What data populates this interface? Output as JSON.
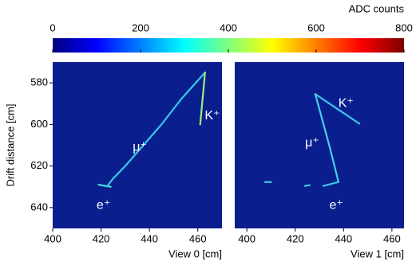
{
  "colorbar": {
    "title": "ADC counts",
    "lim": [
      0,
      800
    ],
    "ticks": [
      0,
      200,
      400,
      600,
      800
    ],
    "colors": [
      "#00007f",
      "#0000ff",
      "#007fff",
      "#00ffff",
      "#7fff7f",
      "#ffff00",
      "#ff7f00",
      "#ff0000",
      "#7f0000"
    ]
  },
  "chart_data": [
    {
      "type": "track",
      "background": "#0a1e8e",
      "xlabel": "View 0  [cm]",
      "ylabel": "Drift distance  [cm]",
      "xlim": [
        400,
        470
      ],
      "ylim": [
        650,
        570
      ],
      "xticks": [
        400,
        420,
        440,
        460
      ],
      "yticks": [
        580,
        600,
        620,
        640
      ],
      "tracks": [
        {
          "x": [
            423,
            425,
            430,
            445,
            453,
            463
          ],
          "y": [
            629,
            626,
            620,
            600,
            588,
            575
          ],
          "color": "#35c8e8"
        },
        {
          "x": [
            463,
            461
          ],
          "y": [
            575,
            600
          ],
          "color": "#9ef07a"
        },
        {
          "x": [
            419,
            424
          ],
          "y": [
            629,
            630
          ],
          "color": "#46d8e0"
        }
      ],
      "annotations": [
        {
          "text": "K⁺",
          "x": 466,
          "y": 596
        },
        {
          "text": "μ⁺",
          "x": 436,
          "y": 611
        },
        {
          "text": "e⁺",
          "x": 421,
          "y": 639
        }
      ]
    },
    {
      "type": "track",
      "background": "#0a1e8e",
      "xlabel": "View 1  [cm]",
      "xlim": [
        395,
        465
      ],
      "ylim": [
        650,
        570
      ],
      "xticks": [
        400,
        420,
        440,
        460
      ],
      "tracks": [
        {
          "x": [
            428.3,
            446.5
          ],
          "y": [
            585.4,
            599.6
          ],
          "color": "#3fc6ea"
        },
        {
          "x": [
            428.3,
            434.3,
            437.9
          ],
          "y": [
            585.4,
            611,
            627.7
          ],
          "color": "#46d0e6"
        },
        {
          "x": [
            437.9,
            431.6
          ],
          "y": [
            627.7,
            629.6
          ],
          "color": "#3fc6ea"
        },
        {
          "x": [
            424,
            426
          ],
          "y": [
            629.6,
            629.2
          ],
          "color": "#3fc6ea"
        },
        {
          "x": [
            407.5,
            410
          ],
          "y": [
            627.7,
            627.7
          ],
          "color": "#3fc6ea"
        }
      ],
      "annotations": [
        {
          "text": "K⁺",
          "x": 441,
          "y": 590
        },
        {
          "text": "μ⁺",
          "x": 427,
          "y": 609
        },
        {
          "text": "e⁺",
          "x": 437,
          "y": 639
        }
      ]
    }
  ]
}
